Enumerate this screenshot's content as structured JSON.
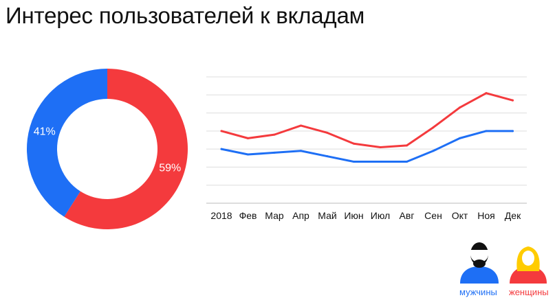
{
  "colors": {
    "men": "#1e6ff5",
    "women": "#f43a3d",
    "grid": "#dddddd",
    "skin": "#ffcc00",
    "hair_men": "#111111",
    "hair_women": "#ffcc00"
  },
  "chart_data": [
    {
      "type": "pie",
      "title": "Интерес пользователей к вкладам",
      "slices": [
        {
          "name": "женщины",
          "value": 59,
          "label": "59%",
          "color": "#f43a3d"
        },
        {
          "name": "мужчины",
          "value": 41,
          "label": "41%",
          "color": "#1e6ff5"
        }
      ]
    },
    {
      "type": "line",
      "categories": [
        "2018",
        "Фев",
        "Мар",
        "Апр",
        "Май",
        "Июн",
        "Июл",
        "Авг",
        "Сен",
        "Окт",
        "Ноя",
        "Дек"
      ],
      "ylim": [
        0,
        7
      ],
      "grid": true,
      "series": [
        {
          "name": "женщины",
          "color": "#f43a3d",
          "values": [
            4.0,
            3.6,
            3.8,
            4.3,
            3.9,
            3.3,
            3.1,
            3.2,
            4.2,
            5.3,
            6.1,
            5.7
          ]
        },
        {
          "name": "мужчины",
          "color": "#1e6ff5",
          "values": [
            3.0,
            2.7,
            2.8,
            2.9,
            2.6,
            2.3,
            2.3,
            2.3,
            2.9,
            3.6,
            4.0,
            4.0
          ]
        }
      ]
    }
  ],
  "legend": {
    "men_label": "мужчины",
    "women_label": "женщины",
    "men_icon": "man-icon",
    "women_icon": "woman-icon"
  }
}
